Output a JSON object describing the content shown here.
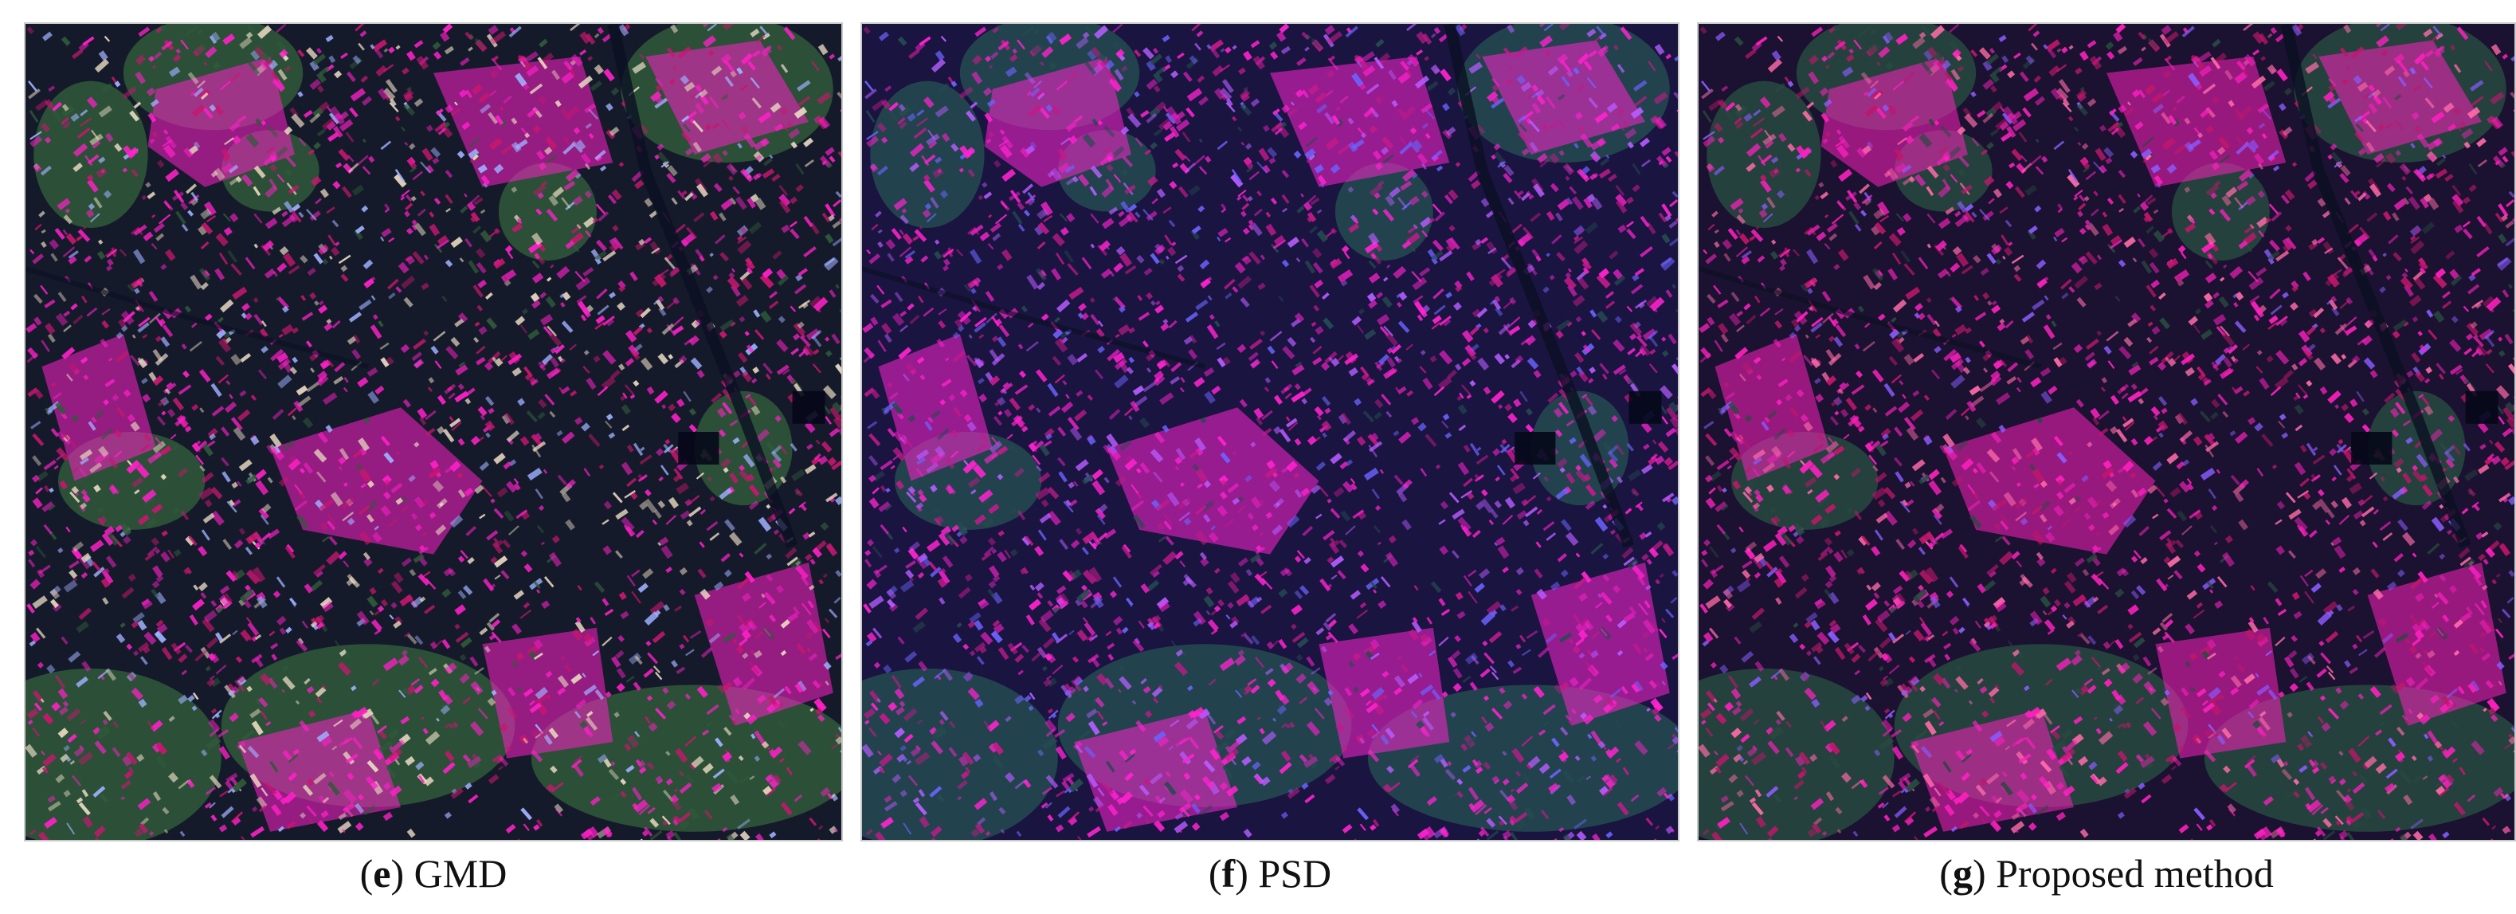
{
  "panels": [
    {
      "id": "e",
      "label": "e",
      "title": "GMD",
      "palette": {
        "base": "#151a2b",
        "magenta": "#ff1fc8",
        "bright": "#e8d8c0",
        "green": "#2f5a3a",
        "pink": "#c8166f",
        "accent": "#9fb0ff"
      }
    },
    {
      "id": "f",
      "label": "f",
      "title": "PSD",
      "palette": {
        "base": "#1a1440",
        "magenta": "#ff22cf",
        "bright": "#b65cff",
        "green": "#254b50",
        "pink": "#c21a8a",
        "accent": "#6b63ff"
      }
    },
    {
      "id": "g",
      "label": "g",
      "title": "Proposed method",
      "palette": {
        "base": "#1a1230",
        "magenta": "#ff1fbf",
        "bright": "#ff6aa8",
        "green": "#284a40",
        "pink": "#c0166b",
        "accent": "#8a5cff"
      }
    }
  ]
}
